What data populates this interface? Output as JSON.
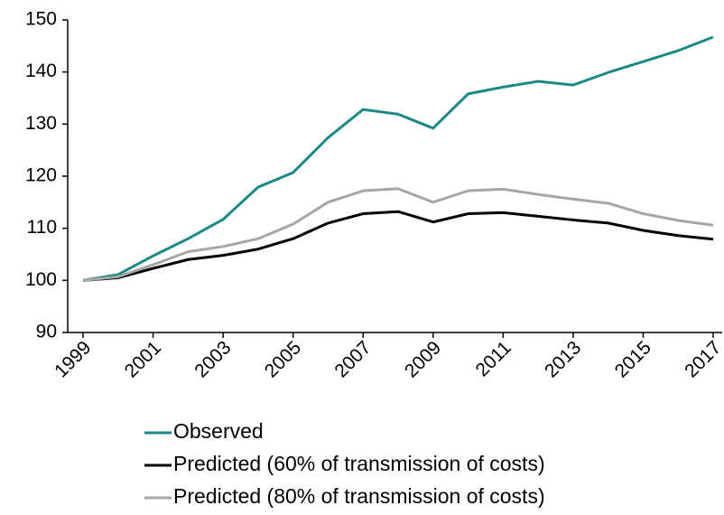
{
  "chart_data": {
    "type": "line",
    "x": [
      1999,
      2000,
      2001,
      2002,
      2003,
      2004,
      2005,
      2006,
      2007,
      2008,
      2009,
      2010,
      2011,
      2012,
      2013,
      2014,
      2015,
      2016,
      2017
    ],
    "series": [
      {
        "name": "Observed",
        "color": "#1b8a87",
        "values": [
          100,
          101.1,
          104.7,
          108,
          111.7,
          117.9,
          120.7,
          127.4,
          132.8,
          131.9,
          129.2,
          135.8,
          137.1,
          138.2,
          137.5,
          139.9,
          142,
          144.1,
          146.7
        ]
      },
      {
        "name": "Predicted (60% of  transmission of costs)",
        "color": "#000000",
        "values": [
          100,
          100.5,
          102.3,
          104,
          104.8,
          106,
          108,
          111,
          112.8,
          113.2,
          111.2,
          112.8,
          113,
          112.3,
          111.6,
          111,
          109.6,
          108.6,
          107.9
        ]
      },
      {
        "name": "Predicted (80% of transmission of costs)",
        "color": "#a6a6a6",
        "values": [
          100,
          100.7,
          103,
          105.5,
          106.5,
          108,
          110.8,
          115,
          117.2,
          117.6,
          115,
          117.2,
          117.5,
          116.5,
          115.6,
          114.8,
          112.8,
          111.5,
          110.6
        ]
      }
    ],
    "xlim": [
      1999,
      2017
    ],
    "xticks": [
      1999,
      2001,
      2003,
      2005,
      2007,
      2009,
      2011,
      2013,
      2015,
      2017
    ],
    "ylim": [
      90,
      150
    ],
    "yticks": [
      90,
      100,
      110,
      120,
      130,
      140,
      150
    ],
    "grid": false,
    "legend": "bottom"
  }
}
